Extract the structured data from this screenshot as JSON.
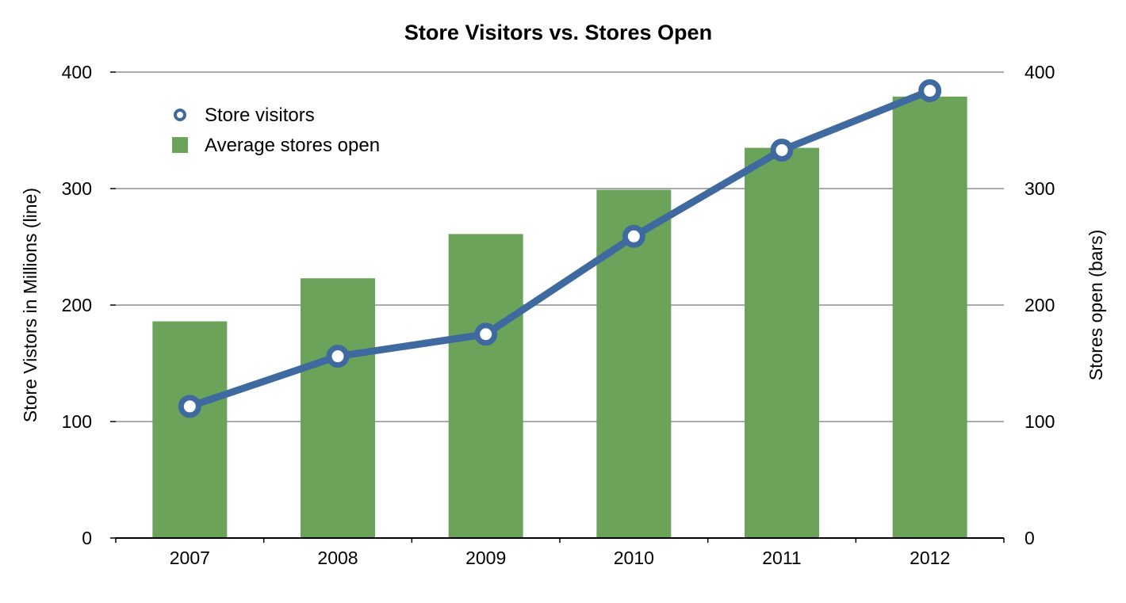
{
  "chart_data": {
    "type": "bar+line",
    "title": "Store Visitors vs. Stores Open",
    "categories": [
      "2007",
      "2008",
      "2009",
      "2010",
      "2011",
      "2012"
    ],
    "series": [
      {
        "name": "Average stores open",
        "type": "bar",
        "axis": "right",
        "color": "#6ba35a",
        "values": [
          186,
          223,
          261,
          299,
          335,
          379
        ]
      },
      {
        "name": "Store visitors",
        "type": "line",
        "axis": "left",
        "color": "#3e6aa0",
        "values": [
          113,
          156,
          175,
          259,
          333,
          384
        ]
      }
    ],
    "ylabel_left": "Store Vistors in Millions (line)",
    "ylabel_right": "Stores open (bars)",
    "ylim_left": [
      0,
      400
    ],
    "ylim_right": [
      0,
      400
    ],
    "yticks_left": [
      "0",
      "100",
      "200",
      "300",
      "400"
    ],
    "yticks_right": [
      "0",
      "100",
      "200",
      "300",
      "400"
    ],
    "grid": true,
    "legend_position": "top-left"
  }
}
